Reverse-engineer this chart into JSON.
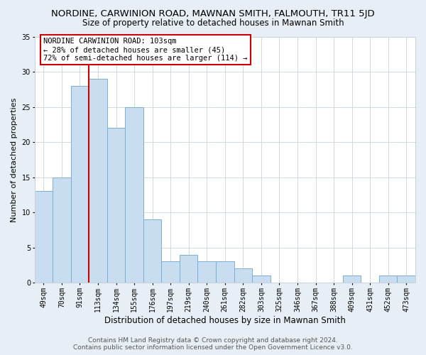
{
  "title": "NORDINE, CARWINION ROAD, MAWNAN SMITH, FALMOUTH, TR11 5JD",
  "subtitle": "Size of property relative to detached houses in Mawnan Smith",
  "xlabel": "Distribution of detached houses by size in Mawnan Smith",
  "ylabel": "Number of detached properties",
  "footer_line1": "Contains HM Land Registry data © Crown copyright and database right 2024.",
  "footer_line2": "Contains public sector information licensed under the Open Government Licence v3.0.",
  "bar_labels": [
    "49sqm",
    "70sqm",
    "91sqm",
    "113sqm",
    "134sqm",
    "155sqm",
    "176sqm",
    "197sqm",
    "219sqm",
    "240sqm",
    "261sqm",
    "282sqm",
    "303sqm",
    "325sqm",
    "346sqm",
    "367sqm",
    "388sqm",
    "409sqm",
    "431sqm",
    "452sqm",
    "473sqm"
  ],
  "bar_values": [
    13,
    15,
    28,
    29,
    22,
    25,
    9,
    3,
    4,
    3,
    3,
    2,
    1,
    0,
    0,
    0,
    0,
    1,
    0,
    1,
    1
  ],
  "bar_color": "#c9ddf0",
  "bar_edge_color": "#7bafd4",
  "vline_x": 2.5,
  "vline_color": "#cc0000",
  "annotation_text": "NORDINE CARWINION ROAD: 103sqm\n← 28% of detached houses are smaller (45)\n72% of semi-detached houses are larger (114) →",
  "annotation_box_color": "#ffffff",
  "annotation_box_edge": "#cc0000",
  "ylim": [
    0,
    35
  ],
  "yticks": [
    0,
    5,
    10,
    15,
    20,
    25,
    30,
    35
  ],
  "bg_color": "#e8eef5",
  "plot_bg_color": "#ffffff",
  "grid_color": "#c8d4e0",
  "title_fontsize": 9.5,
  "subtitle_fontsize": 8.5,
  "xlabel_fontsize": 8.5,
  "ylabel_fontsize": 8,
  "tick_fontsize": 7,
  "annotation_fontsize": 7.5,
  "footer_fontsize": 6.5
}
